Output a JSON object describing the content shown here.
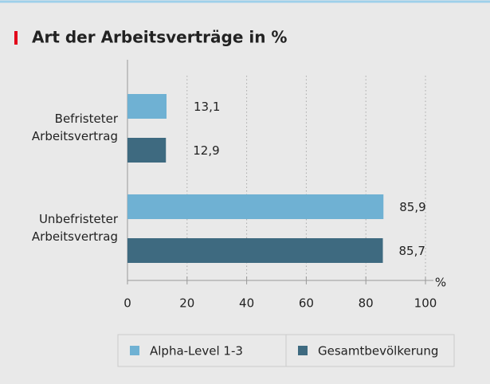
{
  "chart_data": {
    "type": "bar",
    "orientation": "horizontal",
    "title": "Art der Arbeitsverträge in %",
    "categories": [
      "Befristeter Arbeitsvertrag",
      "Unbefristeter Arbeitsvertrag"
    ],
    "series": [
      {
        "name": "Alpha-Level 1-3",
        "color": "#6fb1d3",
        "values": [
          13.1,
          85.9
        ],
        "value_labels": [
          "13,1",
          "85,9"
        ]
      },
      {
        "name": "Gesamtbevölkerung",
        "color": "#3e6a80",
        "values": [
          12.9,
          85.7
        ],
        "value_labels": [
          "12,9",
          "85,7"
        ]
      }
    ],
    "xlabel": "%",
    "xlim": [
      0,
      100
    ],
    "xticks": [
      0,
      20,
      40,
      60,
      80,
      100
    ],
    "grid": true,
    "legend": "bottom"
  }
}
